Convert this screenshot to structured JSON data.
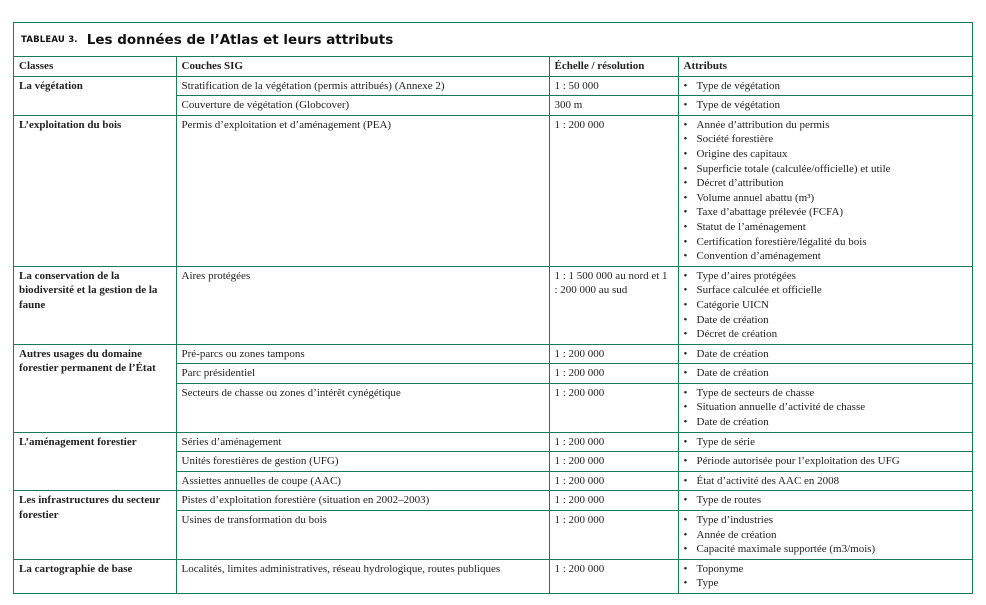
{
  "table": {
    "label": "TABLEAU 3.",
    "title": "Les données de l’Atlas et leurs attributs",
    "border_color": "#1b7a58",
    "headers": [
      "Classes",
      "Couches SIG",
      "Échelle / résolution",
      "Attributs"
    ],
    "groups": [
      {
        "class": "La végétation",
        "layers": [
          {
            "layer": "Stratification de la végétation (permis attribués) (Annexe 2)",
            "scale": "1 : 50 000",
            "attributes": [
              "Type de végétation"
            ]
          },
          {
            "layer": "Couverture de végétation (Globcover)",
            "scale": "300 m",
            "attributes": [
              "Type de végétation"
            ]
          }
        ]
      },
      {
        "class": "L’exploitation du bois",
        "layers": [
          {
            "layer": "Permis d’exploitation et d’aménagement (PEA)",
            "scale": "1 : 200 000",
            "attributes": [
              "Année d’attribution du permis",
              "Société forestière",
              "Origine des capitaux",
              "Superficie totale (calculée/officielle) et utile",
              "Décret d’attribution",
              "Volume annuel abattu (m³)",
              "Taxe d’abattage prélevée (FCFA)",
              "Statut de l’aménagement",
              "Certification forestière/légalité du bois",
              "Convention d’aménagement"
            ]
          }
        ]
      },
      {
        "class": "La conservation de la biodiversité et la gestion de la faune",
        "layers": [
          {
            "layer": "Aires protégées",
            "scale": "1 : 1 500 000 au nord et 1 : 200 000 au sud",
            "attributes": [
              "Type d’aires protégées",
              "Surface calculée et officielle",
              "Catégorie UICN",
              "Date de création",
              "Décret de création"
            ]
          }
        ]
      },
      {
        "class": "Autres usages du domaine forestier permanent de l’État",
        "layers": [
          {
            "layer": "Pré-parcs ou zones tampons",
            "scale": "1 : 200 000",
            "attributes": [
              "Date de création"
            ]
          },
          {
            "layer": "Parc présidentiel",
            "scale": "1 : 200 000",
            "attributes": [
              "Date de création"
            ]
          },
          {
            "layer": "Secteurs de chasse ou zones d’intérêt cynégétique",
            "scale": "1 : 200 000",
            "attributes": [
              "Type de secteurs de chasse",
              "Situation annuelle d’activité de chasse",
              "Date de création"
            ]
          }
        ]
      },
      {
        "class": "L’aménagement forestier",
        "layers": [
          {
            "layer": "Séries d’aménagement",
            "scale": "1 : 200 000",
            "attributes": [
              "Type de série"
            ]
          },
          {
            "layer": "Unités forestières de gestion (UFG)",
            "scale": "1 : 200 000",
            "attributes": [
              "Période autorisée pour l’exploitation des UFG"
            ]
          },
          {
            "layer": "Assiettes annuelles de coupe (AAC)",
            "scale": "1 : 200 000",
            "attributes": [
              "État d’activité des AAC en 2008"
            ]
          }
        ]
      },
      {
        "class": "Les infrastructures du secteur forestier",
        "layers": [
          {
            "layer": "Pistes d’exploitation forestière (situation en 2002–2003)",
            "scale": "1 : 200 000",
            "attributes": [
              "Type de routes"
            ]
          },
          {
            "layer": "Usines de transformation du bois",
            "scale": "1 : 200 000",
            "attributes": [
              "Type d’industries",
              "Année de création",
              "Capacité maximale supportée (m3/mois)"
            ]
          }
        ]
      },
      {
        "class": "La cartographie de base",
        "layers": [
          {
            "layer": "Localités, limites administratives, réseau hydrologique, routes publiques",
            "scale": "1 : 200 000",
            "attributes": [
              "Toponyme",
              "Type"
            ]
          }
        ]
      }
    ]
  }
}
